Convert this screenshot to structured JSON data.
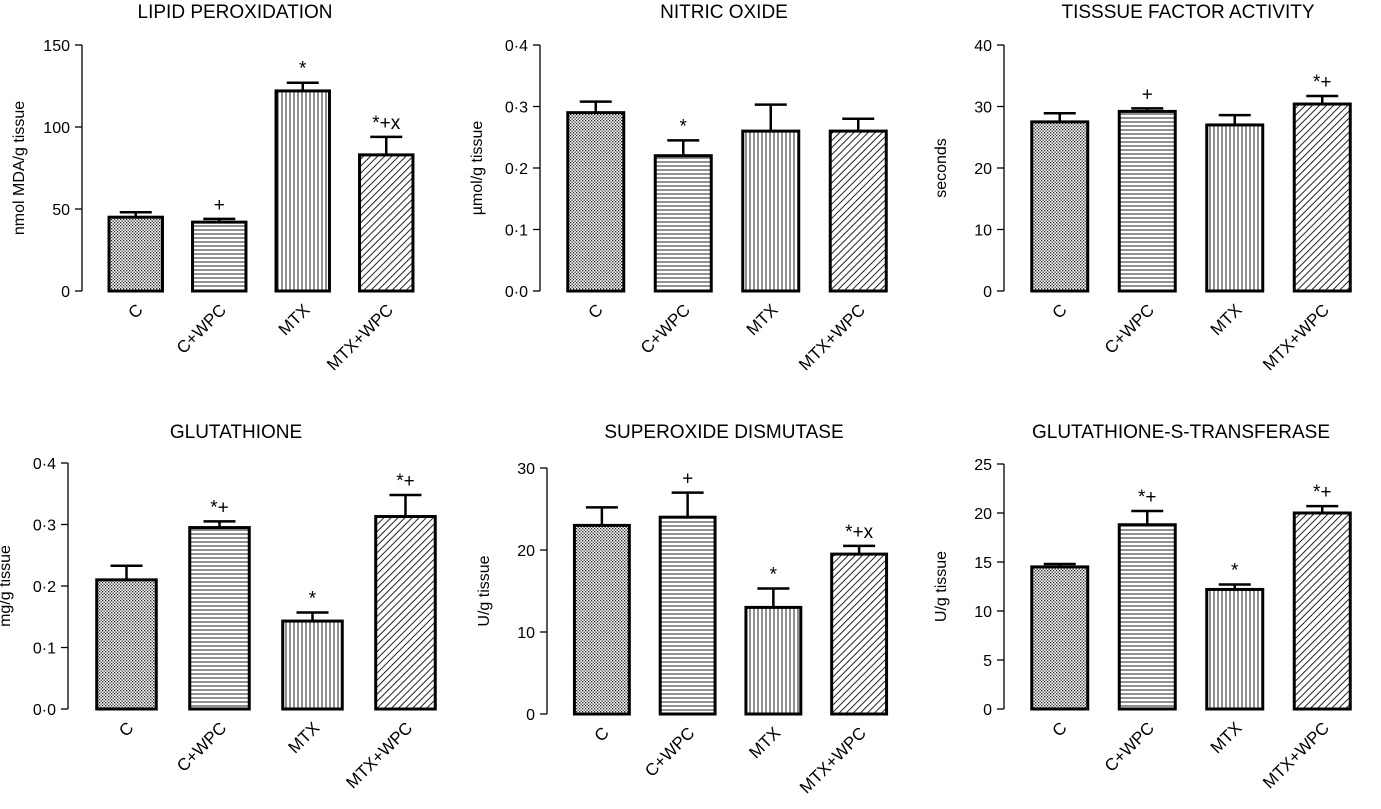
{
  "chart_data": [
    {
      "type": "bar",
      "title": "LIPID PEROXIDATION",
      "ylabel": "nmol MDA/g tissue",
      "xlabel": "",
      "categories": [
        "C",
        "C+WPC",
        "MTX",
        "MTX+WPC"
      ],
      "values": [
        45,
        42,
        122,
        83
      ],
      "errors": [
        3,
        2,
        5,
        11
      ],
      "annotations": [
        "",
        "+",
        "*",
        "*+x"
      ],
      "ylim": [
        0,
        150
      ],
      "yticks": [
        0,
        50,
        100,
        150
      ],
      "ytick_labels": [
        "0",
        "50",
        "100",
        "150"
      ]
    },
    {
      "type": "bar",
      "title": "NITRIC OXIDE",
      "ylabel": "µmol/g tissue",
      "xlabel": "",
      "categories": [
        "C",
        "C+WPC",
        "MTX",
        "MTX+WPC"
      ],
      "values": [
        0.29,
        0.22,
        0.26,
        0.26
      ],
      "errors": [
        0.018,
        0.025,
        0.043,
        0.02
      ],
      "annotations": [
        "",
        "*",
        "",
        ""
      ],
      "ylim": [
        0,
        0.4
      ],
      "yticks": [
        0,
        0.1,
        0.2,
        0.3,
        0.4
      ],
      "ytick_labels": [
        "0·0",
        "0·1",
        "0·2",
        "0·3",
        "0·4"
      ]
    },
    {
      "type": "bar",
      "title": "TISSSUE FACTOR ACTIVITY",
      "ylabel": "seconds",
      "xlabel": "",
      "categories": [
        "C",
        "C+WPC",
        "MTX",
        "MTX+WPC"
      ],
      "values": [
        27.5,
        29.2,
        27,
        30.4
      ],
      "errors": [
        1.4,
        0.5,
        1.6,
        1.3
      ],
      "annotations": [
        "",
        "+",
        "",
        "*+"
      ],
      "ylim": [
        0,
        40
      ],
      "yticks": [
        0,
        10,
        20,
        30,
        40
      ],
      "ytick_labels": [
        "0",
        "10",
        "20",
        "30",
        "40"
      ]
    },
    {
      "type": "bar",
      "title": "GLUTATHIONE",
      "ylabel": "mg/g tissue",
      "xlabel": "",
      "categories": [
        "C",
        "C+WPC",
        "MTX",
        "MTX+WPC"
      ],
      "values": [
        0.21,
        0.295,
        0.143,
        0.313
      ],
      "errors": [
        0.023,
        0.01,
        0.014,
        0.035
      ],
      "annotations": [
        "",
        "*+",
        "*",
        "*+"
      ],
      "ylim": [
        0,
        0.4
      ],
      "yticks": [
        0,
        0.1,
        0.2,
        0.3,
        0.4
      ],
      "ytick_labels": [
        "0·0",
        "0·1",
        "0·2",
        "0·3",
        "0·4"
      ]
    },
    {
      "type": "bar",
      "title": "SUPEROXIDE DISMUTASE",
      "ylabel": "U/g tissue",
      "xlabel": "",
      "categories": [
        "C",
        "C+WPC",
        "MTX",
        "MTX+WPC"
      ],
      "values": [
        23,
        24,
        13,
        19.5
      ],
      "errors": [
        2.2,
        3.0,
        2.3,
        1.0
      ],
      "annotations": [
        "",
        "+",
        "*",
        "*+x"
      ],
      "ylim": [
        0,
        30
      ],
      "yticks": [
        0,
        10,
        20,
        30
      ],
      "ytick_labels": [
        "0",
        "10",
        "20",
        "30"
      ]
    },
    {
      "type": "bar",
      "title": "GLUTATHIONE-S-TRANSFERASE",
      "ylabel": "U/g tissue",
      "xlabel": "",
      "categories": [
        "C",
        "C+WPC",
        "MTX",
        "MTX+WPC"
      ],
      "values": [
        14.5,
        18.8,
        12.2,
        20
      ],
      "errors": [
        0.3,
        1.4,
        0.5,
        0.7
      ],
      "annotations": [
        "",
        "*+",
        "*",
        "*+"
      ],
      "ylim": [
        0,
        25
      ],
      "yticks": [
        0,
        5,
        10,
        15,
        20,
        25
      ],
      "ytick_labels": [
        "0",
        "5",
        "10",
        "15",
        "20",
        "25"
      ]
    }
  ]
}
